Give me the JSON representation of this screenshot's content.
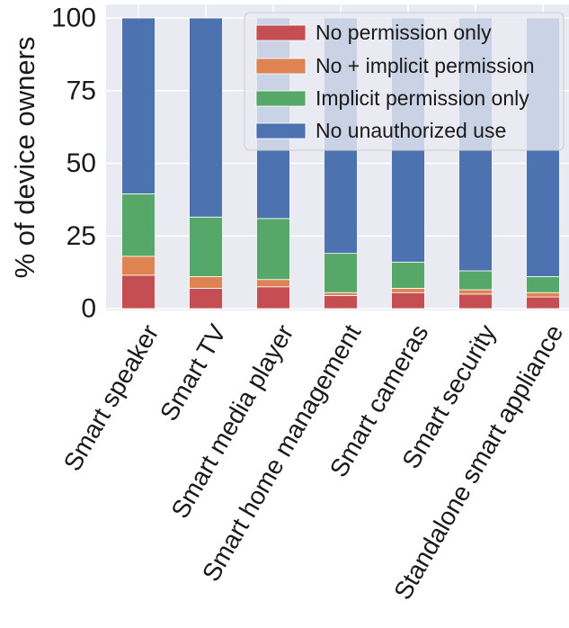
{
  "chart_data": {
    "type": "bar",
    "stacked": true,
    "title": "",
    "xlabel": "",
    "ylabel": "% of device owners",
    "ylim": [
      0,
      100
    ],
    "yticks": [
      0,
      25,
      50,
      75,
      100
    ],
    "grid": true,
    "legend_position": "top-right",
    "categories": [
      "Smart speaker",
      "Smart TV",
      "Smart media player",
      "Smart home management",
      "Smart cameras",
      "Smart security",
      "Standalone smart appliance"
    ],
    "series": [
      {
        "name": "No permission only",
        "color": "#c44e52",
        "values": [
          11.5,
          7,
          7.5,
          4.5,
          5.5,
          5,
          4
        ]
      },
      {
        "name": "No + implicit permission",
        "color": "#dd8452",
        "values": [
          6.5,
          4,
          2.5,
          1,
          1.5,
          1.5,
          1.5
        ]
      },
      {
        "name": "Implicit permission only",
        "color": "#55a868",
        "values": [
          21.5,
          20.5,
          21,
          13.5,
          9,
          6.5,
          5.5
        ]
      },
      {
        "name": "No unauthorized use",
        "color": "#4c72b0",
        "values": [
          60.5,
          68.5,
          69,
          81,
          84,
          87,
          89
        ]
      }
    ]
  },
  "colors": {
    "plot_background": "#eaeaf2",
    "grid": "#ffffff",
    "text": "#1a1a1a"
  }
}
